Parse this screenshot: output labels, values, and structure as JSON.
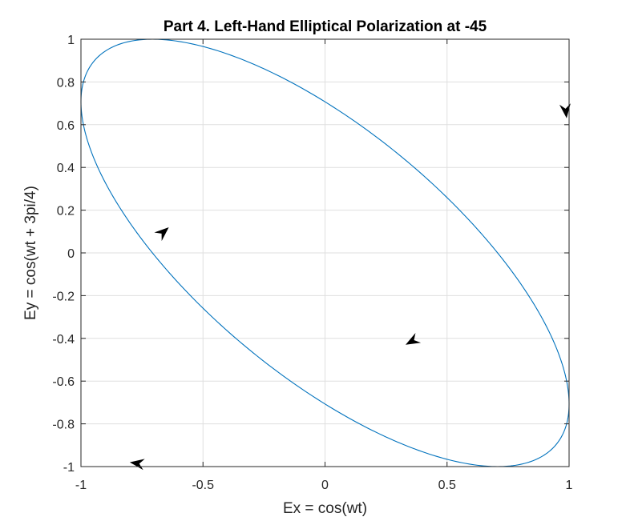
{
  "chart_data": {
    "type": "line",
    "title": "Part 4. Left-Hand Elliptical Polarization at -45",
    "xlabel": "Ex = cos(wt)",
    "ylabel": "Ey = cos(wt + 3pi/4)",
    "xlim": [
      -1,
      1
    ],
    "ylim": [
      -1,
      1
    ],
    "x_ticks": [
      -1,
      -0.5,
      0,
      0.5,
      1
    ],
    "x_tick_labels": [
      "-1",
      "-0.5",
      "0",
      "0.5",
      "1"
    ],
    "y_ticks": [
      -1,
      -0.8,
      -0.6,
      -0.4,
      -0.2,
      0,
      0.2,
      0.4,
      0.6,
      0.8,
      1
    ],
    "y_tick_labels": [
      "-1",
      "-0.8",
      "-0.6",
      "-0.4",
      "-0.2",
      "0",
      "0.2",
      "0.4",
      "0.6",
      "0.8",
      "1"
    ],
    "grid": true,
    "series": [
      {
        "curve": "parametric",
        "x_expression": "cos(wt)",
        "y_expression": "cos(wt + 3pi/4)",
        "phase_offset_rad": 2.35619449,
        "wt_range": [
          0,
          6.283185307
        ],
        "color": "#0072BD"
      }
    ],
    "arrows": [
      {
        "x": 0.99,
        "y": 0.63,
        "dx": 0.01,
        "dy": -0.1
      },
      {
        "x": 0.33,
        "y": -0.43,
        "dx": -0.08,
        "dy": -0.05
      },
      {
        "x": -0.8,
        "y": -0.98,
        "dx": -0.12,
        "dy": 0.02
      },
      {
        "x": -0.64,
        "y": 0.12,
        "dx": 0.05,
        "dy": 0.05
      }
    ],
    "arrow_color": "#000000"
  }
}
